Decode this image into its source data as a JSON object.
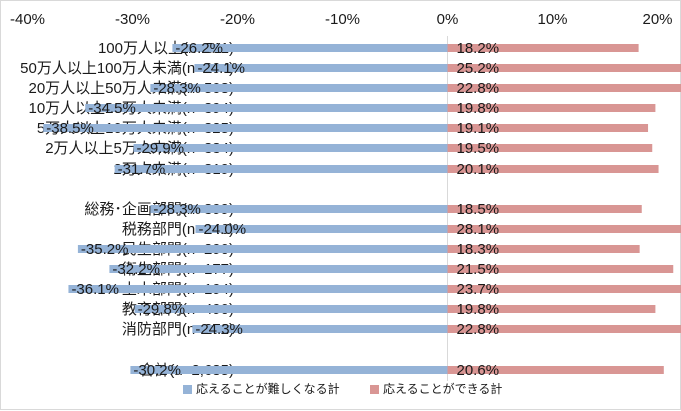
{
  "chart_data": {
    "type": "bar",
    "orientation": "horizontal",
    "x_axis": {
      "range": [
        -40,
        40
      ],
      "ticks": [
        -40,
        -30,
        -20,
        -10,
        0,
        10,
        20,
        30,
        40
      ],
      "tick_labels": [
        "-40%",
        "-30%",
        "-20%",
        "-10%",
        "0%",
        "10%",
        "20%",
        "30%",
        "40%"
      ],
      "position": "top"
    },
    "categories": [
      "100万人以上(n=511)",
      "50万人以上100万人未満(n=294)",
      "20万人以上50万人未満(n=508)",
      "10万人以上20万人未満(n=394)",
      "5万人以上10万人未満(n=325)",
      "2万人以上5万人未満(n=334)",
      "2万人未満(n=319)",
      "総務･企画部門(n=399)",
      "税務部門(n=146)",
      "民生部門(n=290)",
      "衛生部門(n=177)",
      "土木部門(n=194)",
      "教育部門(n=490)",
      "消防部門(n=272)",
      "合計(n=2,685)"
    ],
    "series": [
      {
        "name": "応えることが難しくなる計",
        "color": "#95b3d7",
        "values": [
          -26.2,
          -24.1,
          -28.3,
          -34.5,
          -38.5,
          -29.9,
          -31.7,
          -28.3,
          -24.0,
          -35.2,
          -32.2,
          -36.1,
          -29.8,
          -24.3,
          -30.2
        ],
        "labels": [
          "-26.2%",
          "-24.1%",
          "-28.3%",
          "-34.5%",
          "-38.5%",
          "-29.9%",
          "-31.7%",
          "-28.3%",
          "-24.0%",
          "-35.2%",
          "-32.2%",
          "-36.1%",
          "-29.8%",
          "-24.3%",
          "-30.2%"
        ]
      },
      {
        "name": "応えることができる計",
        "color": "#d99694",
        "values": [
          18.2,
          25.2,
          22.8,
          19.8,
          19.1,
          19.5,
          20.1,
          18.5,
          28.1,
          18.3,
          21.5,
          23.7,
          19.8,
          22.8,
          20.6
        ],
        "labels": [
          "18.2%",
          "25.2%",
          "22.8%",
          "19.8%",
          "19.1%",
          "19.5%",
          "20.1%",
          "18.5%",
          "28.1%",
          "18.3%",
          "21.5%",
          "23.7%",
          "19.8%",
          "22.8%",
          "20.6%"
        ]
      }
    ],
    "legend": {
      "placement": "bottom"
    },
    "grid": false
  }
}
